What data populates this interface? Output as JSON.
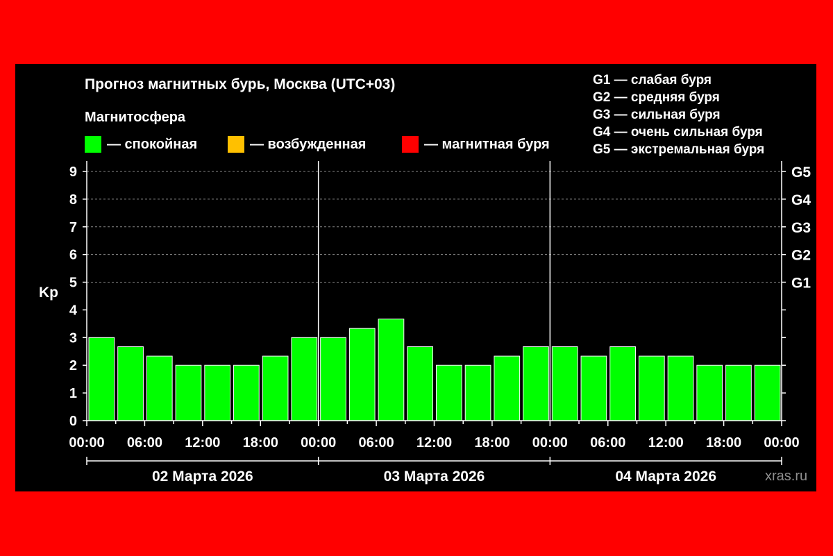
{
  "colors": {
    "border": "#ff0000",
    "background": "#000000",
    "calm": "#00ff00",
    "excited": "#ffc000",
    "storm": "#ff0000",
    "text": "#ffffff"
  },
  "title": "Прогноз магнитных бурь, Москва (UTC+03)",
  "legend": {
    "header": "Магнитосфера",
    "items": [
      {
        "label": "— спокойная",
        "color": "#00ff00"
      },
      {
        "label": "— возбужденная",
        "color": "#ffc000"
      },
      {
        "label": "— магнитная буря",
        "color": "#ff0000"
      }
    ]
  },
  "storm_levels": [
    "G1 — слабая буря",
    "G2 — средняя буря",
    "G3 — сильная буря",
    "G4 — очень сильная буря",
    "G5 — экстремальная буря"
  ],
  "watermark": "xras.ru",
  "chart_data": {
    "type": "bar",
    "title": "Прогноз магнитных бурь, Москва (UTC+03)",
    "ylabel": "Kp",
    "ylim": [
      0,
      9
    ],
    "yticks": [
      "0",
      "1",
      "2",
      "3",
      "4",
      "5",
      "6",
      "7",
      "8",
      "9"
    ],
    "right_axis": [
      {
        "kp": 5,
        "label": "G1"
      },
      {
        "kp": 6,
        "label": "G2"
      },
      {
        "kp": 7,
        "label": "G3"
      },
      {
        "kp": 8,
        "label": "G4"
      },
      {
        "kp": 9,
        "label": "G5"
      }
    ],
    "grid": "dashed horizontal at Kp 5–9",
    "xtick_labels": [
      "00:00",
      "06:00",
      "12:00",
      "18:00",
      "00:00",
      "06:00",
      "12:00",
      "18:00",
      "00:00",
      "06:00",
      "12:00",
      "18:00",
      "00:00"
    ],
    "days": [
      "02 Марта 2026",
      "03 Марта 2026",
      "04 Марта 2026"
    ],
    "interval_hours": 3,
    "values": [
      3.0,
      2.67,
      2.33,
      2.0,
      2.0,
      2.0,
      2.33,
      3.0,
      3.0,
      3.33,
      3.67,
      2.67,
      2.0,
      2.0,
      2.33,
      2.67,
      2.67,
      2.33,
      2.67,
      2.33,
      2.33,
      2.0,
      2.0,
      2.0
    ],
    "bar_colors": [
      "#00ff00",
      "#00ff00",
      "#00ff00",
      "#00ff00",
      "#00ff00",
      "#00ff00",
      "#00ff00",
      "#00ff00",
      "#00ff00",
      "#00ff00",
      "#00ff00",
      "#00ff00",
      "#00ff00",
      "#00ff00",
      "#00ff00",
      "#00ff00",
      "#00ff00",
      "#00ff00",
      "#00ff00",
      "#00ff00",
      "#00ff00",
      "#00ff00",
      "#00ff00",
      "#00ff00"
    ]
  }
}
